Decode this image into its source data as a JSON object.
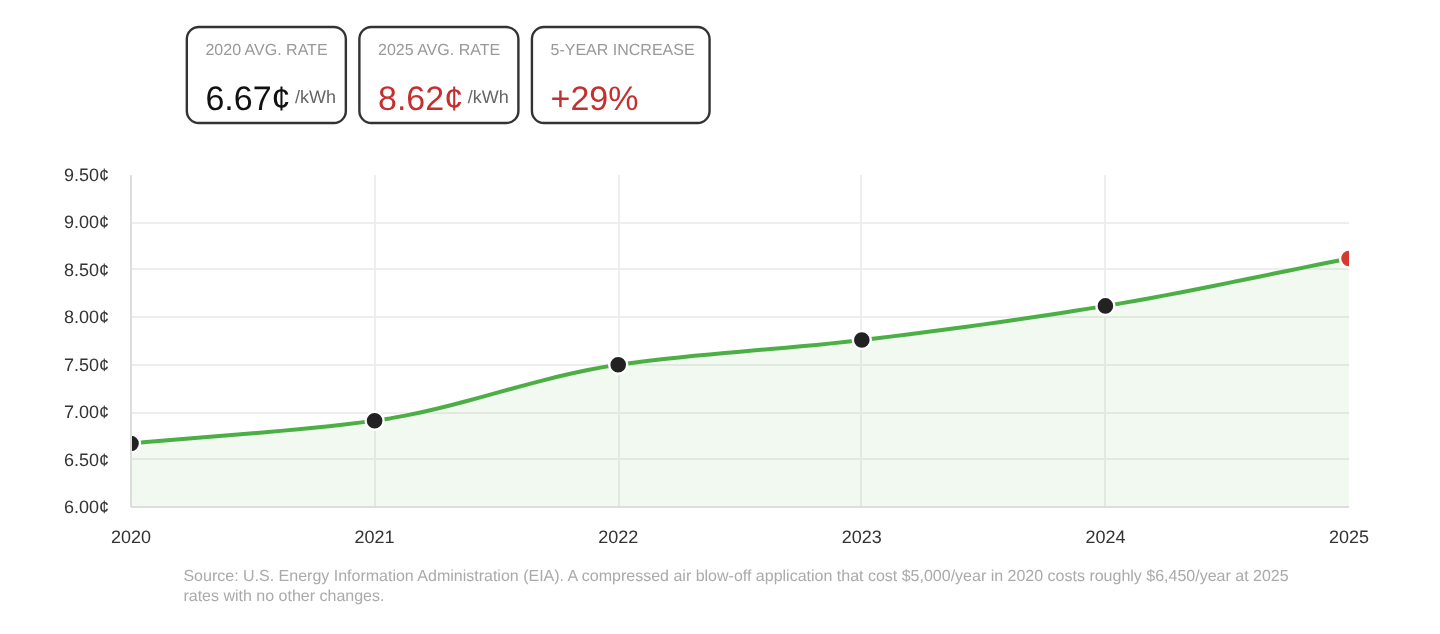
{
  "chart_data": [
    {
      "type": "other",
      "annotations": [
        "2020 AVG. RATE",
        "6.67¢",
        "/kWh",
        "2025 AVG. RATE",
        "8.62¢",
        "/kWh",
        "5-YEAR INCREASE",
        "+29%"
      ]
    },
    {
      "type": "area",
      "x": [
        2020,
        2021,
        2022,
        2023,
        2024,
        2025
      ],
      "series": [
        {
          "color": "#4caf45",
          "colors": [
            "#222222",
            "#222222",
            "#222222",
            "#222222",
            "#222222",
            "#d63a2f"
          ],
          "values": [
            6.67,
            6.91,
            7.5,
            7.76,
            8.12,
            8.62
          ]
        }
      ],
      "xlim": [
        2020,
        2025
      ],
      "xticks": [
        2020,
        2021,
        2022,
        2023,
        2024,
        2025
      ],
      "ylim": [
        6.0,
        9.5
      ],
      "yticks": [
        {
          "value": 6.0,
          "label": "6.00¢"
        },
        {
          "value": 6.5,
          "label": "6.50¢"
        },
        {
          "value": 7.0,
          "label": "7.00¢"
        },
        {
          "value": 7.5,
          "label": "7.50¢"
        },
        {
          "value": 8.0,
          "label": "8.00¢"
        },
        {
          "value": 8.5,
          "label": "8.50¢"
        },
        {
          "value": 9.0,
          "label": "9.00¢"
        },
        {
          "value": 9.5,
          "label": "9.50¢"
        }
      ],
      "grid": true,
      "marker": "circle",
      "line_style": "solid",
      "annotations": [
        "Source: U.S. Energy Information Administration (EIA). A compressed air blow-off application that cost $5,000/year in 2020 costs roughly $6,450/year at 2025 rates with no other changes."
      ]
    }
  ]
}
